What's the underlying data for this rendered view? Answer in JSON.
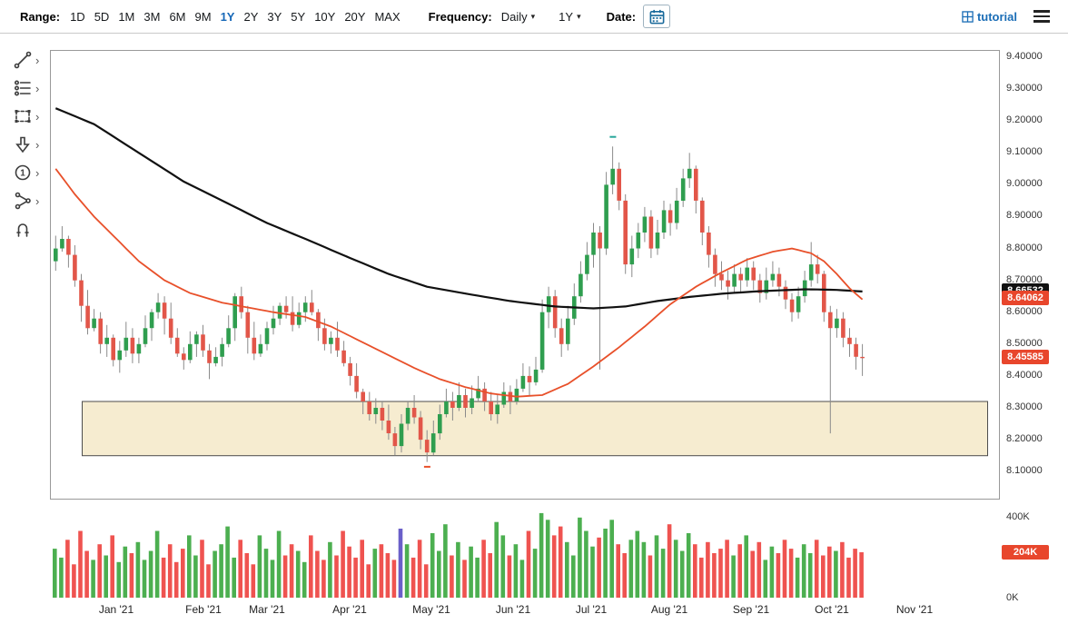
{
  "toolbar": {
    "range_label": "Range:",
    "range_options": [
      "1D",
      "5D",
      "1M",
      "3M",
      "6M",
      "9M",
      "1Y",
      "2Y",
      "3Y",
      "5Y",
      "10Y",
      "20Y",
      "MAX"
    ],
    "range_active": "1Y",
    "frequency_label": "Frequency:",
    "frequency_value": "Daily",
    "period_value": "1Y",
    "date_label": "Date:",
    "tutorial_label": "tutorial"
  },
  "icons": {
    "caret": "▾",
    "submenu_chevron": "›"
  },
  "tools": {
    "items": [
      {
        "name": "trendline-tool",
        "has_submenu": true
      },
      {
        "name": "fibonacci-tool",
        "has_submenu": true
      },
      {
        "name": "shapes-tool",
        "has_submenu": true
      },
      {
        "name": "arrows-tool",
        "has_submenu": true
      },
      {
        "name": "numbers-tool",
        "has_submenu": true
      },
      {
        "name": "more-tools",
        "has_submenu": true
      },
      {
        "name": "magnet-tool",
        "has_submenu": false
      }
    ]
  },
  "chart_data": {
    "type": "candlestick",
    "frequency": "Daily",
    "range": "1Y",
    "x_labels": [
      "Jan '21",
      "Feb '21",
      "Mar '21",
      "Apr '21",
      "May '21",
      "Jun '21",
      "Jul '21",
      "Aug '21",
      "Sep '21",
      "Oct '21",
      "Nov '21"
    ],
    "price_axis_ticks": [
      "9.40000",
      "9.30000",
      "9.20000",
      "9.10000",
      "9.00000",
      "8.90000",
      "8.80000",
      "8.70000",
      "8.60000",
      "8.50000",
      "8.40000",
      "8.30000",
      "8.20000",
      "8.10000"
    ],
    "price_axis_range": [
      8.1,
      9.4
    ],
    "volume_axis_ticks": [
      "400K",
      "0K"
    ],
    "volume_axis_max_k": 400,
    "last_price": "8.45585",
    "colors": {
      "up": "#2f9e4f",
      "down": "#e25649",
      "wick": "#8a8a8a",
      "vol_up": "#4caf50",
      "vol_down": "#ef5350"
    },
    "candles": {
      "ohlc": [
        [
          8.76,
          8.84,
          8.73,
          8.8
        ],
        [
          8.8,
          8.87,
          8.79,
          8.83
        ],
        [
          8.83,
          8.84,
          8.74,
          8.78
        ],
        [
          8.78,
          8.81,
          8.68,
          8.7
        ],
        [
          8.7,
          8.72,
          8.57,
          8.62
        ],
        [
          8.62,
          8.67,
          8.53,
          8.55
        ],
        [
          8.55,
          8.61,
          8.54,
          8.58
        ],
        [
          8.58,
          8.6,
          8.47,
          8.5
        ],
        [
          8.5,
          8.56,
          8.46,
          8.52
        ],
        [
          8.52,
          8.53,
          8.43,
          8.45
        ],
        [
          8.45,
          8.51,
          8.41,
          8.48
        ],
        [
          8.48,
          8.57,
          8.46,
          8.52
        ],
        [
          8.52,
          8.55,
          8.44,
          8.47
        ],
        [
          8.47,
          8.52,
          8.44,
          8.5
        ],
        [
          8.5,
          8.59,
          8.49,
          8.55
        ],
        [
          8.55,
          8.61,
          8.51,
          8.6
        ],
        [
          8.6,
          8.66,
          8.58,
          8.63
        ],
        [
          8.63,
          8.65,
          8.53,
          8.58
        ],
        [
          8.58,
          8.63,
          8.5,
          8.52
        ],
        [
          8.52,
          8.55,
          8.46,
          8.47
        ],
        [
          8.47,
          8.49,
          8.42,
          8.45
        ],
        [
          8.45,
          8.54,
          8.44,
          8.5
        ],
        [
          8.5,
          8.54,
          8.46,
          8.53
        ],
        [
          8.53,
          8.56,
          8.46,
          8.48
        ],
        [
          8.48,
          8.5,
          8.39,
          8.44
        ],
        [
          8.44,
          8.49,
          8.43,
          8.46
        ],
        [
          8.46,
          8.52,
          8.43,
          8.5
        ],
        [
          8.5,
          8.59,
          8.49,
          8.55
        ],
        [
          8.55,
          8.66,
          8.51,
          8.65
        ],
        [
          8.65,
          8.68,
          8.58,
          8.6
        ],
        [
          8.6,
          8.62,
          8.47,
          8.52
        ],
        [
          8.52,
          8.57,
          8.45,
          8.47
        ],
        [
          8.47,
          8.53,
          8.46,
          8.5
        ],
        [
          8.5,
          8.57,
          8.48,
          8.55
        ],
        [
          8.55,
          8.62,
          8.53,
          8.58
        ],
        [
          8.58,
          8.63,
          8.56,
          8.62
        ],
        [
          8.62,
          8.65,
          8.58,
          8.6
        ],
        [
          8.6,
          8.65,
          8.54,
          8.56
        ],
        [
          8.56,
          8.63,
          8.55,
          8.6
        ],
        [
          8.6,
          8.65,
          8.57,
          8.63
        ],
        [
          8.63,
          8.67,
          8.59,
          8.6
        ],
        [
          8.6,
          8.61,
          8.51,
          8.55
        ],
        [
          8.55,
          8.58,
          8.48,
          8.5
        ],
        [
          8.5,
          8.54,
          8.47,
          8.52
        ],
        [
          8.52,
          8.57,
          8.46,
          8.48
        ],
        [
          8.48,
          8.51,
          8.43,
          8.44
        ],
        [
          8.44,
          8.46,
          8.37,
          8.4
        ],
        [
          8.4,
          8.44,
          8.33,
          8.35
        ],
        [
          8.35,
          8.36,
          8.28,
          8.32
        ],
        [
          8.32,
          8.35,
          8.26,
          8.28
        ],
        [
          8.28,
          8.33,
          8.25,
          8.3
        ],
        [
          8.3,
          8.32,
          8.23,
          8.26
        ],
        [
          8.26,
          8.31,
          8.2,
          8.22
        ],
        [
          8.22,
          8.24,
          8.15,
          8.18
        ],
        [
          8.18,
          8.28,
          8.16,
          8.25
        ],
        [
          8.25,
          8.32,
          8.23,
          8.3
        ],
        [
          8.3,
          8.34,
          8.25,
          8.27
        ],
        [
          8.27,
          8.29,
          8.17,
          8.2
        ],
        [
          8.2,
          8.23,
          8.13,
          8.16
        ],
        [
          8.16,
          8.26,
          8.15,
          8.22
        ],
        [
          8.22,
          8.31,
          8.2,
          8.28
        ],
        [
          8.28,
          8.36,
          8.27,
          8.32
        ],
        [
          8.32,
          8.35,
          8.26,
          8.3
        ],
        [
          8.3,
          8.38,
          8.29,
          8.34
        ],
        [
          8.34,
          8.36,
          8.27,
          8.3
        ],
        [
          8.3,
          8.37,
          8.28,
          8.33
        ],
        [
          8.33,
          8.4,
          8.32,
          8.36
        ],
        [
          8.36,
          8.38,
          8.29,
          8.32
        ],
        [
          8.32,
          8.35,
          8.26,
          8.28
        ],
        [
          8.28,
          8.34,
          8.25,
          8.31
        ],
        [
          8.31,
          8.38,
          8.3,
          8.35
        ],
        [
          8.35,
          8.37,
          8.28,
          8.32
        ],
        [
          8.32,
          8.39,
          8.31,
          8.36
        ],
        [
          8.36,
          8.44,
          8.35,
          8.4
        ],
        [
          8.4,
          8.43,
          8.34,
          8.38
        ],
        [
          8.38,
          8.46,
          8.37,
          8.42
        ],
        [
          8.42,
          8.64,
          8.41,
          8.6
        ],
        [
          8.6,
          8.68,
          8.55,
          8.65
        ],
        [
          8.65,
          8.67,
          8.52,
          8.55
        ],
        [
          8.55,
          8.58,
          8.46,
          8.5
        ],
        [
          8.5,
          8.62,
          8.48,
          8.58
        ],
        [
          8.58,
          8.69,
          8.56,
          8.65
        ],
        [
          8.65,
          8.76,
          8.63,
          8.72
        ],
        [
          8.72,
          8.82,
          8.7,
          8.78
        ],
        [
          8.78,
          8.88,
          8.74,
          8.85
        ],
        [
          8.85,
          8.87,
          8.42,
          8.8
        ],
        [
          8.8,
          9.04,
          8.78,
          9.0
        ],
        [
          9.0,
          9.12,
          8.97,
          9.05
        ],
        [
          9.05,
          9.07,
          8.92,
          8.95
        ],
        [
          8.95,
          8.97,
          8.72,
          8.75
        ],
        [
          8.75,
          8.84,
          8.71,
          8.8
        ],
        [
          8.8,
          8.88,
          8.77,
          8.85
        ],
        [
          8.85,
          8.93,
          8.82,
          8.9
        ],
        [
          8.9,
          8.92,
          8.77,
          8.8
        ],
        [
          8.8,
          8.89,
          8.78,
          8.85
        ],
        [
          8.85,
          8.95,
          8.83,
          8.92
        ],
        [
          8.92,
          8.94,
          8.84,
          8.88
        ],
        [
          8.88,
          8.99,
          8.86,
          8.95
        ],
        [
          8.95,
          9.05,
          8.93,
          9.02
        ],
        [
          9.02,
          9.1,
          8.99,
          9.05
        ],
        [
          9.05,
          9.06,
          8.91,
          8.95
        ],
        [
          8.95,
          8.96,
          8.81,
          8.85
        ],
        [
          8.85,
          8.87,
          8.74,
          8.78
        ],
        [
          8.78,
          8.8,
          8.68,
          8.72
        ],
        [
          8.72,
          8.76,
          8.67,
          8.7
        ],
        [
          8.7,
          8.73,
          8.64,
          8.68
        ],
        [
          8.68,
          8.75,
          8.66,
          8.72
        ],
        [
          8.72,
          8.74,
          8.66,
          8.7
        ],
        [
          8.7,
          8.77,
          8.68,
          8.74
        ],
        [
          8.74,
          8.76,
          8.67,
          8.7
        ],
        [
          8.7,
          8.72,
          8.63,
          8.66
        ],
        [
          8.66,
          8.74,
          8.64,
          8.7
        ],
        [
          8.7,
          8.76,
          8.68,
          8.72
        ],
        [
          8.72,
          8.74,
          8.65,
          8.68
        ],
        [
          8.68,
          8.7,
          8.61,
          8.64
        ],
        [
          8.64,
          8.66,
          8.57,
          8.6
        ],
        [
          8.6,
          8.68,
          8.58,
          8.65
        ],
        [
          8.65,
          8.73,
          8.63,
          8.7
        ],
        [
          8.7,
          8.82,
          8.68,
          8.75
        ],
        [
          8.75,
          8.78,
          8.69,
          8.72
        ],
        [
          8.72,
          8.73,
          8.57,
          8.6
        ],
        [
          8.6,
          8.62,
          8.22,
          8.55
        ],
        [
          8.55,
          8.61,
          8.52,
          8.58
        ],
        [
          8.58,
          8.6,
          8.49,
          8.52
        ],
        [
          8.52,
          8.55,
          8.46,
          8.5
        ],
        [
          8.5,
          8.52,
          8.42,
          8.46
        ],
        [
          8.46,
          8.5,
          8.4,
          8.456
        ]
      ],
      "volumes_k": [
        220,
        180,
        260,
        150,
        300,
        210,
        170,
        240,
        190,
        280,
        160,
        230,
        200,
        250,
        170,
        210,
        300,
        180,
        240,
        160,
        220,
        280,
        190,
        260,
        150,
        210,
        240,
        320,
        180,
        260,
        200,
        150,
        280,
        220,
        170,
        300,
        190,
        240,
        210,
        160,
        280,
        210,
        170,
        250,
        190,
        300,
        230,
        180,
        260,
        150,
        220,
        240,
        200,
        170,
        310,
        240,
        180,
        260,
        150,
        290,
        210,
        330,
        190,
        250,
        170,
        230,
        180,
        260,
        200,
        340,
        280,
        190,
        240,
        170,
        300,
        220,
        380,
        350,
        280,
        320,
        250,
        190,
        360,
        300,
        230,
        270,
        310,
        350,
        240,
        200,
        260,
        300,
        250,
        190,
        280,
        220,
        330,
        260,
        210,
        290,
        240,
        180,
        250,
        200,
        220,
        260,
        190,
        240,
        280,
        210,
        250,
        170,
        230,
        200,
        260,
        220,
        180,
        240,
        200,
        260,
        190,
        230,
        210,
        250,
        180,
        220,
        204
      ]
    },
    "moving_averages": [
      {
        "name": "ma-long-line",
        "color": "#111111",
        "width": 2.2,
        "anchors": [
          [
            0,
            9.24
          ],
          [
            6,
            9.19
          ],
          [
            13,
            9.1
          ],
          [
            20,
            9.01
          ],
          [
            26,
            8.95
          ],
          [
            33,
            8.88
          ],
          [
            39,
            8.83
          ],
          [
            46,
            8.77
          ],
          [
            52,
            8.72
          ],
          [
            58,
            8.68
          ],
          [
            65,
            8.655
          ],
          [
            71,
            8.635
          ],
          [
            78,
            8.618
          ],
          [
            84,
            8.612
          ],
          [
            89,
            8.618
          ],
          [
            94,
            8.635
          ],
          [
            99,
            8.648
          ],
          [
            104,
            8.658
          ],
          [
            110,
            8.666
          ],
          [
            117,
            8.672
          ],
          [
            122,
            8.67
          ],
          [
            126,
            8.665
          ]
        ]
      },
      {
        "name": "ma-short-line",
        "color": "#e8502a",
        "width": 1.8,
        "anchors": [
          [
            0,
            9.05
          ],
          [
            3,
            8.97
          ],
          [
            6,
            8.9
          ],
          [
            10,
            8.82
          ],
          [
            13,
            8.76
          ],
          [
            17,
            8.7
          ],
          [
            21,
            8.66
          ],
          [
            26,
            8.63
          ],
          [
            30,
            8.615
          ],
          [
            34,
            8.6
          ],
          [
            39,
            8.585
          ],
          [
            43,
            8.555
          ],
          [
            47,
            8.515
          ],
          [
            52,
            8.465
          ],
          [
            56,
            8.425
          ],
          [
            60,
            8.39
          ],
          [
            64,
            8.365
          ],
          [
            68,
            8.345
          ],
          [
            72,
            8.335
          ],
          [
            76,
            8.34
          ],
          [
            80,
            8.375
          ],
          [
            84,
            8.43
          ],
          [
            88,
            8.49
          ],
          [
            92,
            8.555
          ],
          [
            96,
            8.625
          ],
          [
            100,
            8.68
          ],
          [
            104,
            8.725
          ],
          [
            108,
            8.765
          ],
          [
            112,
            8.79
          ],
          [
            115,
            8.8
          ],
          [
            118,
            8.785
          ],
          [
            120,
            8.76
          ],
          [
            122,
            8.72
          ],
          [
            124,
            8.675
          ],
          [
            126,
            8.64
          ]
        ]
      }
    ],
    "annotations": {
      "rectangle": {
        "price_top": 8.32,
        "price_bottom": 8.15,
        "x_start_frac": 0.033,
        "x_end_frac": 0.988,
        "fill": "#f6ecd0",
        "border": "#4d4d4d"
      },
      "high_marker": {
        "index": 87,
        "value": 9.15,
        "color": "#26a69a"
      },
      "low_marker": {
        "index": 58,
        "value": 8.115,
        "color": "#e8502a"
      }
    },
    "badges": [
      {
        "name": "ma-long-value-badge",
        "label": "8.66532",
        "value": 8.66532,
        "bg": "#111111"
      },
      {
        "name": "ma-short-value-badge",
        "label": "8.64062",
        "value": 8.64062,
        "bg": "#e8462c"
      },
      {
        "name": "last-price-badge",
        "label": "8.45585",
        "value": 8.45585,
        "bg": "#e8462c"
      }
    ],
    "volume_badge": {
      "label": "204K",
      "value_k": 204,
      "bg": "#e8462c"
    },
    "volume_highlight": {
      "index": 54,
      "color": "#6a5fc9"
    }
  }
}
